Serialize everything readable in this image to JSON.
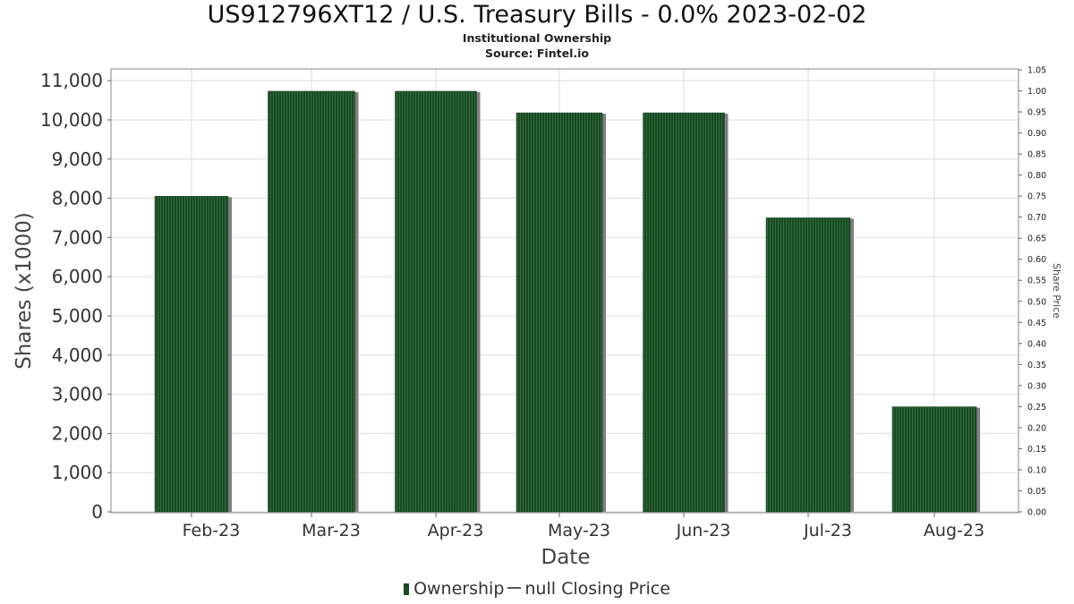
{
  "title": "US912796XT12 / U.S. Treasury Bills - 0.0% 2023-02-02",
  "subtitle": "Institutional Ownership",
  "source": "Source: Fintel.io",
  "colors": {
    "bar": "#1a4a24",
    "bar_stripe": "#2f6a3a",
    "bar_shadow": "#808080",
    "grid": "#dddddd",
    "axis": "#888888"
  },
  "legend": {
    "ownership_label": "Ownership",
    "price_label": "null Closing Price",
    "placement": "bottom-center"
  },
  "chart_data": {
    "type": "bar",
    "title": "US912796XT12 / U.S. Treasury Bills - 0.0% 2023-02-02",
    "xlabel": "Date",
    "ylabel": "Shares (x1000)",
    "y2label": "Share Price",
    "categories": [
      "Feb-23",
      "Mar-23",
      "Apr-23",
      "May-23",
      "Jun-23",
      "Jul-23",
      "Aug-23"
    ],
    "series": [
      {
        "name": "Ownership",
        "values": [
          8050,
          10730,
          10730,
          10180,
          10180,
          7500,
          2680
        ]
      }
    ],
    "ylim": [
      0,
      11300
    ],
    "yticks": [
      "0",
      "1,000",
      "2,000",
      "3,000",
      "4,000",
      "5,000",
      "6,000",
      "7,000",
      "8,000",
      "9,000",
      "10,000",
      "11,000"
    ],
    "y2lim": [
      0,
      1.05
    ],
    "y2ticks": [
      "0.00",
      "0.05",
      "0.10",
      "0.15",
      "0.20",
      "0.25",
      "0.30",
      "0.35",
      "0.40",
      "0.45",
      "0.50",
      "0.55",
      "0.60",
      "0.65",
      "0.70",
      "0.75",
      "0.80",
      "0.85",
      "0.90",
      "0.95",
      "1.00",
      "1.05"
    ],
    "grid": true
  }
}
